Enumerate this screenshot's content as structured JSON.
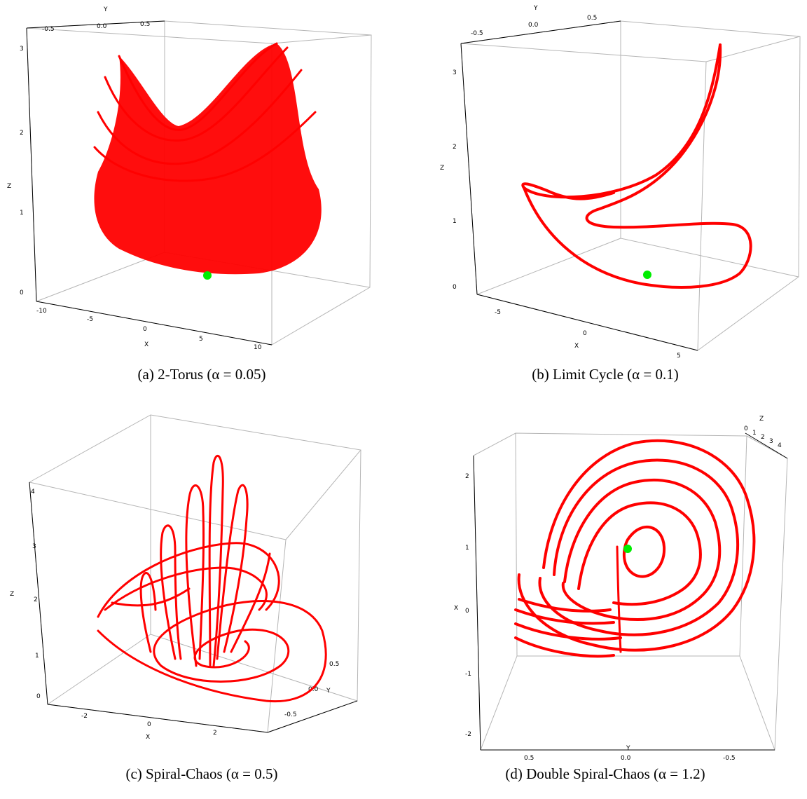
{
  "panels": [
    {
      "id": "a",
      "caption": "(a) 2-Torus (α = 0.05)",
      "axis_labels": {
        "x": "X",
        "y": "Y",
        "z": "Z"
      },
      "x_ticks": [
        "-10",
        "-5",
        "0",
        "5",
        "10"
      ],
      "y_ticks": [
        "-0.5",
        "0.0",
        "0.5"
      ],
      "z_ticks": [
        "0",
        "1",
        "2",
        "3"
      ]
    },
    {
      "id": "b",
      "caption": "(b) Limit Cycle (α = 0.1)",
      "axis_labels": {
        "x": "X",
        "y": "Y",
        "z": "Z"
      },
      "x_ticks": [
        "-5",
        "0",
        "5"
      ],
      "y_ticks": [
        "-0.5",
        "0.0",
        "0.5"
      ],
      "z_ticks": [
        "0",
        "1",
        "2",
        "3"
      ]
    },
    {
      "id": "c",
      "caption": "(c) Spiral-Chaos (α = 0.5)",
      "axis_labels": {
        "x": "X",
        "y": "Y",
        "z": "Z"
      },
      "x_ticks": [
        "-2",
        "0",
        "2"
      ],
      "y_ticks": [
        "0.5",
        "0.0",
        "-0.5"
      ],
      "z_ticks": [
        "0",
        "1",
        "2",
        "3",
        "4"
      ]
    },
    {
      "id": "d",
      "caption": "(d) Double Spiral-Chaos (α = 1.2)",
      "axis_labels": {
        "x": "X",
        "y": "Y",
        "z": "Z"
      },
      "x_ticks": [
        "-2",
        "-1",
        "0",
        "1",
        "2"
      ],
      "y_ticks": [
        "0.5",
        "0.0",
        "-0.5"
      ],
      "z_ticks": [
        "0",
        "1",
        "2",
        "3",
        "4"
      ]
    }
  ],
  "colors": {
    "trajectory": "#ff0000",
    "start_point": "#00ee00",
    "box": "#b5b5b5"
  }
}
